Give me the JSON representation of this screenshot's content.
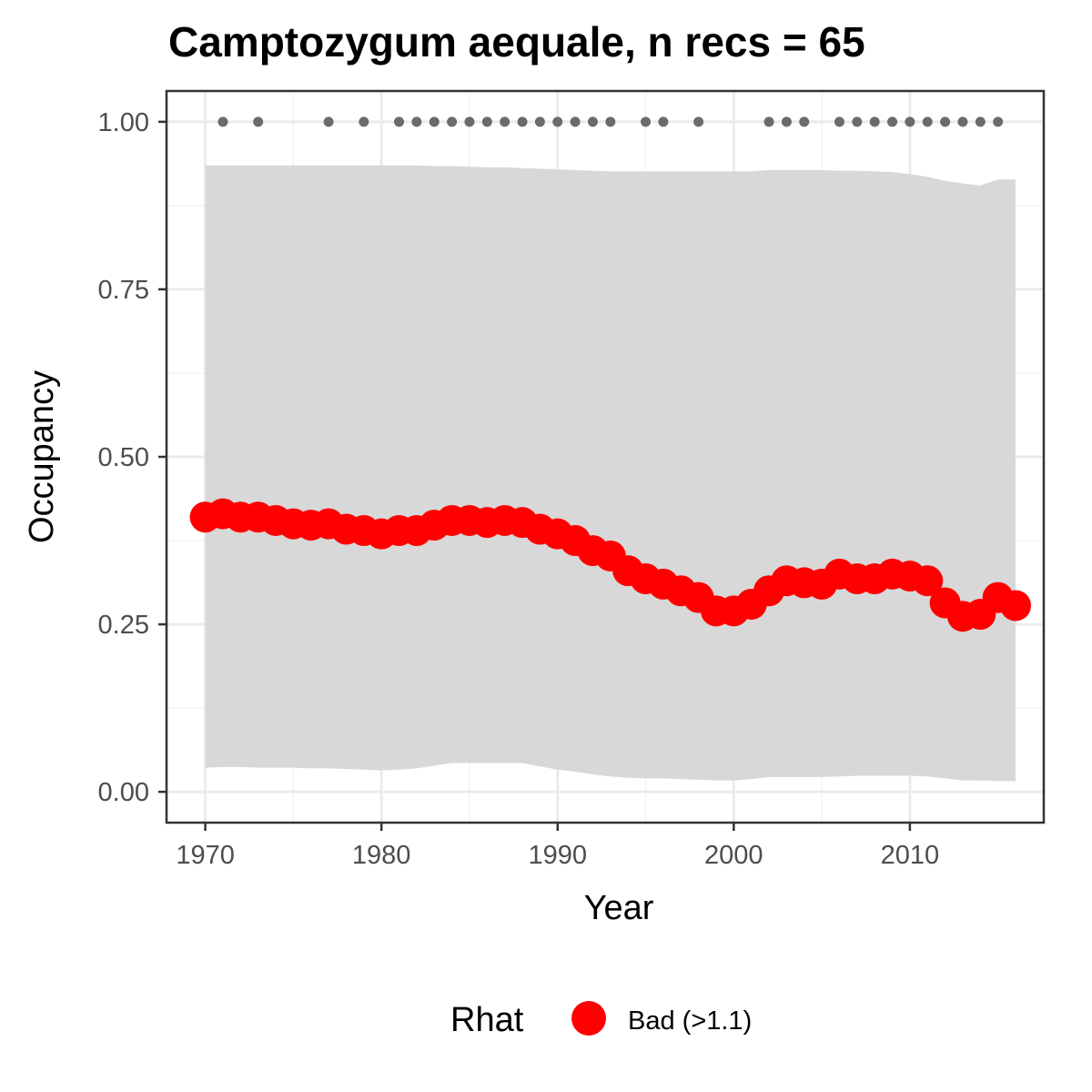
{
  "chart_data": {
    "type": "line",
    "title": "Camptozygum aequale, n recs = 65",
    "xlabel": "Year",
    "ylabel": "Occupancy",
    "xlim": [
      1967.8,
      2017.6
    ],
    "ylim": [
      -0.046,
      1.046
    ],
    "x_ticks": [
      1970,
      1980,
      1990,
      2000,
      2010
    ],
    "x_tick_labels": [
      "1970",
      "1980",
      "1990",
      "2000",
      "2010"
    ],
    "y_ticks": [
      0,
      0.25,
      0.5,
      0.75,
      1.0
    ],
    "y_tick_labels": [
      "0.00",
      "0.25",
      "0.50",
      "0.75",
      "1.00"
    ],
    "grid": true,
    "legend": {
      "title": "Rhat",
      "placement": "bottom",
      "items": [
        {
          "label": "Bad (>1.1)",
          "color": "#FF0000"
        }
      ]
    },
    "colors": {
      "ribbon": "#D6D6D6",
      "points": "#FF0000",
      "records": "#6B6B6B",
      "grid_major": "#EBEBEB",
      "grid_minor": "#F3F3F3",
      "panel_border": "#333333"
    },
    "series": [
      {
        "x": [
          1970,
          1971,
          1972,
          1973,
          1974,
          1975,
          1976,
          1977,
          1978,
          1979,
          1980,
          1981,
          1982,
          1983,
          1984,
          1985,
          1986,
          1987,
          1988,
          1989,
          1990,
          1991,
          1992,
          1993,
          1994,
          1995,
          1996,
          1997,
          1998,
          1999,
          2000,
          2001,
          2002,
          2003,
          2004,
          2005,
          2006,
          2007,
          2008,
          2009,
          2010,
          2011,
          2012,
          2013,
          2014,
          2015,
          2016
        ],
        "values": [
          0.41,
          0.415,
          0.41,
          0.41,
          0.405,
          0.4,
          0.398,
          0.4,
          0.392,
          0.39,
          0.385,
          0.39,
          0.39,
          0.398,
          0.405,
          0.405,
          0.402,
          0.405,
          0.402,
          0.392,
          0.385,
          0.375,
          0.36,
          0.352,
          0.33,
          0.318,
          0.31,
          0.3,
          0.29,
          0.27,
          0.27,
          0.28,
          0.3,
          0.315,
          0.312,
          0.31,
          0.325,
          0.318,
          0.318,
          0.325,
          0.322,
          0.315,
          0.282,
          0.262,
          0.265,
          0.29,
          0.278
        ],
        "lower": [
          0.036,
          0.037,
          0.037,
          0.036,
          0.036,
          0.036,
          0.035,
          0.035,
          0.034,
          0.033,
          0.032,
          0.033,
          0.035,
          0.039,
          0.043,
          0.043,
          0.043,
          0.043,
          0.043,
          0.038,
          0.033,
          0.03,
          0.026,
          0.023,
          0.021,
          0.02,
          0.02,
          0.019,
          0.018,
          0.017,
          0.017,
          0.019,
          0.022,
          0.022,
          0.022,
          0.022,
          0.023,
          0.024,
          0.024,
          0.024,
          0.024,
          0.023,
          0.02,
          0.017,
          0.017,
          0.016,
          0.016
        ],
        "upper": [
          0.935,
          0.935,
          0.935,
          0.935,
          0.935,
          0.935,
          0.935,
          0.935,
          0.935,
          0.935,
          0.935,
          0.935,
          0.935,
          0.934,
          0.934,
          0.933,
          0.932,
          0.932,
          0.931,
          0.93,
          0.929,
          0.928,
          0.927,
          0.926,
          0.926,
          0.926,
          0.926,
          0.926,
          0.926,
          0.926,
          0.926,
          0.926,
          0.928,
          0.928,
          0.928,
          0.928,
          0.927,
          0.927,
          0.926,
          0.925,
          0.922,
          0.918,
          0.912,
          0.908,
          0.905,
          0.914,
          0.914
        ]
      }
    ],
    "records": {
      "x": [
        1971,
        1973,
        1977,
        1979,
        1981,
        1982,
        1983,
        1984,
        1985,
        1986,
        1987,
        1988,
        1989,
        1990,
        1991,
        1992,
        1993,
        1995,
        1996,
        1998,
        2002,
        2003,
        2004,
        2006,
        2007,
        2008,
        2009,
        2010,
        2011,
        2012,
        2013,
        2014,
        2015
      ],
      "value": 1.0
    }
  }
}
